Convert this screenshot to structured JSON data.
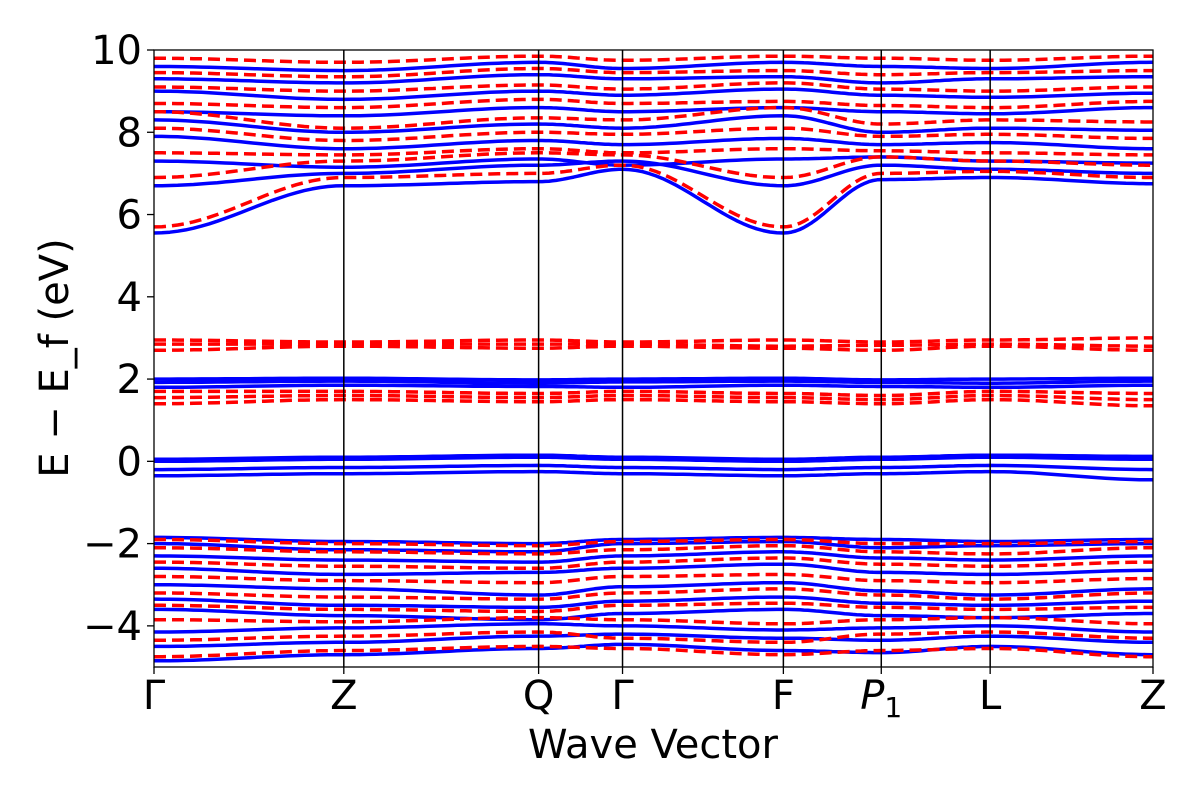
{
  "chart_data": {
    "type": "line",
    "xlabel": "Wave Vector",
    "ylabel": "E − E_f (eV)",
    "ylim": [
      -5,
      10
    ],
    "yticks": [
      -4,
      -2,
      0,
      2,
      4,
      6,
      8,
      10
    ],
    "ytick_labels": [
      "−4",
      "−2",
      "0",
      "2",
      "4",
      "6",
      "8",
      "10"
    ],
    "xlim": [
      0,
      1
    ],
    "kpoints": [
      {
        "label": "Γ",
        "x": 0.0
      },
      {
        "label": "Z",
        "x": 0.19
      },
      {
        "label": "Q",
        "x": 0.385
      },
      {
        "label": "Γ",
        "x": 0.469
      },
      {
        "label": "F",
        "x": 0.63
      },
      {
        "label": "P",
        "sub": "1",
        "x": 0.728
      },
      {
        "label": "L",
        "x": 0.837
      },
      {
        "label": "Z",
        "x": 1.0
      }
    ],
    "grid": false,
    "series": [
      {
        "style": "solid",
        "color": "#0000ff",
        "bands": [
          [
            -4.85,
            -4.7,
            -4.55,
            -4.45,
            -4.6,
            -4.65,
            -4.5,
            -4.7,
            -4.6
          ],
          [
            -4.5,
            -4.4,
            -4.25,
            -4.2,
            -4.3,
            -4.35,
            -4.25,
            -4.4,
            -4.35
          ],
          [
            -4.15,
            -4.05,
            -3.95,
            -4.0,
            -4.1,
            -4.05,
            -4.0,
            -4.15,
            -4.05
          ],
          [
            -3.6,
            -3.75,
            -3.85,
            -3.7,
            -3.6,
            -3.75,
            -3.8,
            -3.7,
            -3.65
          ],
          [
            -3.35,
            -3.5,
            -3.55,
            -3.4,
            -3.3,
            -3.45,
            -3.5,
            -3.4,
            -3.35
          ],
          [
            -3.0,
            -3.1,
            -3.25,
            -3.05,
            -2.95,
            -3.15,
            -3.25,
            -3.1,
            -3.0
          ],
          [
            -2.6,
            -2.75,
            -2.7,
            -2.6,
            -2.5,
            -2.7,
            -2.75,
            -2.65,
            -2.55
          ],
          [
            -2.3,
            -2.4,
            -2.45,
            -2.3,
            -2.2,
            -2.35,
            -2.4,
            -2.3,
            -2.25
          ],
          [
            -2.0,
            -2.15,
            -2.2,
            -2.0,
            -1.95,
            -2.1,
            -2.05,
            -2.0,
            -1.95
          ],
          [
            -1.85,
            -1.95,
            -2.0,
            -1.9,
            -1.85,
            -1.9,
            -1.95,
            -1.9,
            -1.85
          ],
          [
            -0.35,
            -0.3,
            -0.25,
            -0.3,
            -0.35,
            -0.3,
            -0.25,
            -0.45,
            -0.35
          ],
          [
            -0.2,
            -0.15,
            -0.1,
            -0.15,
            -0.2,
            -0.15,
            -0.1,
            -0.2,
            -0.15
          ],
          [
            0.0,
            0.05,
            0.1,
            0.05,
            0.0,
            0.05,
            0.1,
            0.05,
            0.0
          ],
          [
            0.05,
            0.1,
            0.15,
            0.1,
            0.05,
            0.1,
            0.15,
            0.12,
            0.08
          ],
          [
            1.8,
            1.85,
            1.82,
            1.8,
            1.85,
            1.82,
            1.8,
            1.85,
            1.82
          ],
          [
            1.92,
            1.95,
            1.9,
            1.93,
            1.95,
            1.92,
            1.9,
            1.95,
            1.93
          ],
          [
            2.0,
            2.02,
            1.98,
            2.0,
            2.02,
            1.98,
            2.0,
            2.02,
            2.0
          ],
          [
            5.55,
            6.7,
            6.8,
            7.1,
            5.55,
            6.85,
            6.9,
            6.75,
            6.85
          ],
          [
            6.7,
            7.0,
            7.2,
            7.3,
            6.7,
            7.2,
            7.1,
            7.0,
            7.1
          ],
          [
            7.3,
            7.15,
            7.35,
            7.2,
            7.35,
            7.4,
            7.3,
            7.25,
            7.4
          ],
          [
            7.9,
            7.6,
            7.8,
            7.7,
            7.85,
            7.7,
            7.75,
            7.6,
            7.5
          ],
          [
            8.3,
            8.0,
            8.2,
            8.1,
            8.4,
            8.0,
            8.1,
            8.05,
            8.0
          ],
          [
            8.5,
            8.4,
            8.6,
            8.5,
            8.6,
            8.5,
            8.45,
            8.6,
            8.7
          ],
          [
            9.0,
            8.8,
            9.0,
            8.9,
            9.05,
            8.9,
            8.85,
            8.95,
            9.0
          ],
          [
            9.3,
            9.2,
            9.4,
            9.3,
            9.35,
            9.2,
            9.3,
            9.35,
            9.4
          ],
          [
            9.6,
            9.5,
            9.7,
            9.55,
            9.7,
            9.6,
            9.55,
            9.7,
            9.6
          ]
        ]
      },
      {
        "style": "dashed",
        "color": "#ff0000",
        "bands": [
          [
            -4.75,
            -4.6,
            -4.5,
            -4.55,
            -4.7,
            -4.6,
            -4.55,
            -4.75,
            -4.6
          ],
          [
            -4.35,
            -4.25,
            -4.15,
            -4.3,
            -4.4,
            -4.2,
            -4.15,
            -4.3,
            -4.2
          ],
          [
            -3.85,
            -3.9,
            -3.8,
            -3.85,
            -3.95,
            -3.85,
            -3.8,
            -3.95,
            -3.85
          ],
          [
            -3.5,
            -3.6,
            -3.65,
            -3.5,
            -3.45,
            -3.55,
            -3.6,
            -3.55,
            -3.5
          ],
          [
            -3.2,
            -3.3,
            -3.35,
            -3.2,
            -3.1,
            -3.25,
            -3.35,
            -3.2,
            -3.15
          ],
          [
            -2.8,
            -2.9,
            -2.95,
            -2.8,
            -2.75,
            -2.9,
            -2.95,
            -2.85,
            -2.8
          ],
          [
            -2.45,
            -2.55,
            -2.6,
            -2.45,
            -2.35,
            -2.5,
            -2.55,
            -2.45,
            -2.4
          ],
          [
            -2.1,
            -2.2,
            -2.25,
            -2.15,
            -2.05,
            -2.2,
            -2.25,
            -2.1,
            -2.05
          ],
          [
            -1.9,
            -2.0,
            -2.05,
            -1.95,
            -1.9,
            -2.0,
            -2.0,
            -1.95,
            -1.9
          ],
          [
            1.4,
            1.5,
            1.45,
            1.5,
            1.45,
            1.4,
            1.5,
            1.35,
            1.45
          ],
          [
            1.55,
            1.6,
            1.55,
            1.6,
            1.55,
            1.5,
            1.6,
            1.5,
            1.55
          ],
          [
            1.7,
            1.7,
            1.65,
            1.7,
            1.65,
            1.6,
            1.7,
            1.65,
            1.7
          ],
          [
            2.7,
            2.8,
            2.75,
            2.8,
            2.75,
            2.7,
            2.8,
            2.7,
            2.75
          ],
          [
            2.85,
            2.85,
            2.85,
            2.85,
            2.8,
            2.82,
            2.85,
            2.8,
            2.85
          ],
          [
            2.95,
            2.9,
            2.95,
            2.9,
            2.95,
            2.9,
            2.95,
            3.0,
            2.9
          ],
          [
            5.7,
            6.9,
            7.0,
            7.2,
            5.7,
            7.0,
            7.05,
            6.9,
            7.0
          ],
          [
            6.9,
            7.3,
            7.5,
            7.45,
            6.9,
            7.4,
            7.3,
            7.2,
            7.3
          ],
          [
            7.5,
            7.45,
            7.6,
            7.5,
            7.6,
            7.55,
            7.5,
            7.45,
            7.55
          ],
          [
            8.1,
            7.8,
            8.0,
            7.95,
            8.1,
            7.9,
            7.95,
            7.85,
            7.8
          ],
          [
            8.5,
            8.1,
            8.35,
            8.3,
            8.6,
            8.2,
            8.3,
            8.25,
            8.1
          ],
          [
            8.7,
            8.6,
            8.8,
            8.7,
            8.75,
            8.65,
            8.6,
            8.75,
            8.9
          ],
          [
            9.1,
            9.0,
            9.15,
            9.05,
            9.2,
            9.05,
            9.0,
            9.1,
            9.2
          ],
          [
            9.45,
            9.35,
            9.55,
            9.45,
            9.5,
            9.4,
            9.45,
            9.5,
            9.55
          ],
          [
            9.8,
            9.7,
            9.85,
            9.75,
            9.85,
            9.8,
            9.75,
            9.85,
            9.8
          ]
        ]
      }
    ]
  }
}
